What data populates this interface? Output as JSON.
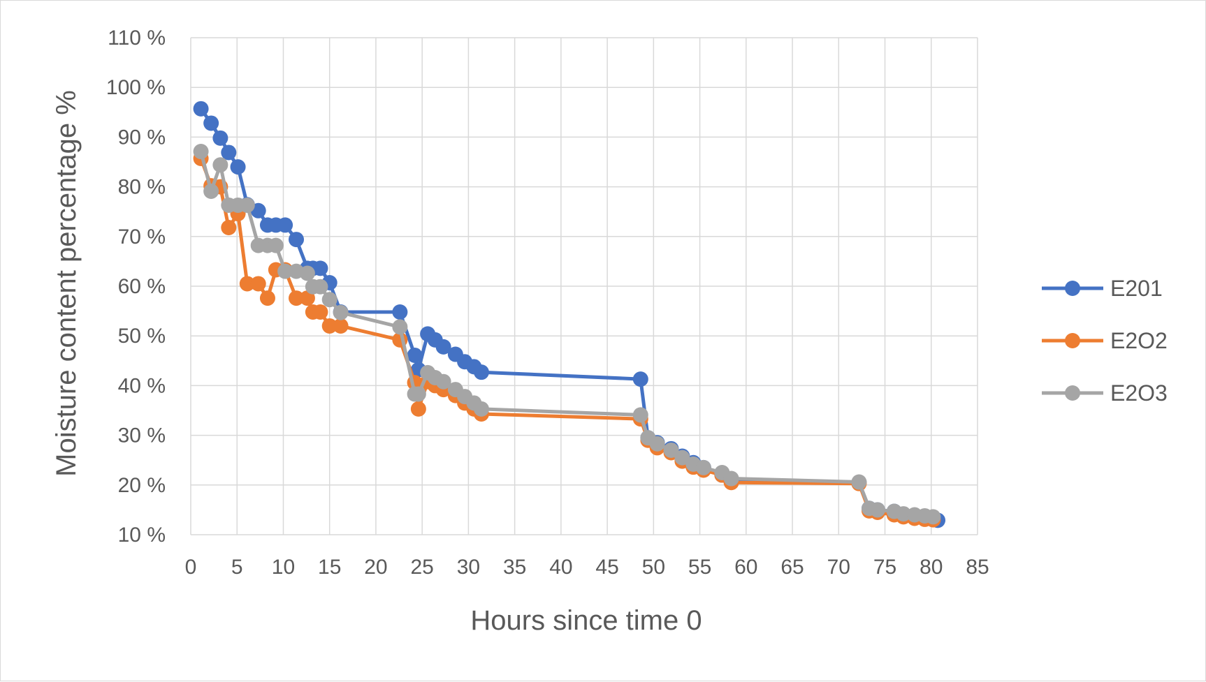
{
  "chart_data": {
    "type": "line",
    "title": "",
    "xlabel": "Hours since time 0",
    "ylabel": "Moisture content percentage %",
    "xlim": [
      0,
      85
    ],
    "ylim": [
      10,
      110
    ],
    "xticks": [
      "0",
      "5",
      "10",
      "15",
      "20",
      "25",
      "30",
      "35",
      "40",
      "45",
      "50",
      "55",
      "60",
      "65",
      "70",
      "75",
      "80",
      "85"
    ],
    "yticks": [
      "10 %",
      "20 %",
      "30 %",
      "40 %",
      "50 %",
      "60 %",
      "70 %",
      "80 %",
      "90 %",
      "100 %",
      "110 %"
    ],
    "grid": true,
    "legend_position": "right",
    "series": [
      {
        "name": "E201",
        "color": "#4472c4",
        "points": [
          [
            1.1,
            95.7
          ],
          [
            2.2,
            92.8
          ],
          [
            3.2,
            89.8
          ],
          [
            4.1,
            86.9
          ],
          [
            5.1,
            84.0
          ],
          [
            6.1,
            76.4
          ],
          [
            7.3,
            75.2
          ],
          [
            8.3,
            72.3
          ],
          [
            9.2,
            72.3
          ],
          [
            10.2,
            72.3
          ],
          [
            11.4,
            69.4
          ],
          [
            12.6,
            63.6
          ],
          [
            13.2,
            63.6
          ],
          [
            14.0,
            63.6
          ],
          [
            15.0,
            60.7
          ],
          [
            16.2,
            54.8
          ],
          [
            22.6,
            54.8
          ],
          [
            24.2,
            46.1
          ],
          [
            24.6,
            43.2
          ],
          [
            25.6,
            50.4
          ],
          [
            26.4,
            49.2
          ],
          [
            27.3,
            47.8
          ],
          [
            28.6,
            46.3
          ],
          [
            29.6,
            44.8
          ],
          [
            30.6,
            43.8
          ],
          [
            31.4,
            42.7
          ],
          [
            48.6,
            41.3
          ],
          [
            49.4,
            29.5
          ],
          [
            50.4,
            28.5
          ],
          [
            51.9,
            27.3
          ],
          [
            53.1,
            25.8
          ],
          [
            54.3,
            24.5
          ],
          [
            55.4,
            23.5
          ],
          [
            57.4,
            22.0
          ],
          [
            58.4,
            21.0
          ],
          [
            72.2,
            20.5
          ],
          [
            73.3,
            15.3
          ],
          [
            74.2,
            15.0
          ],
          [
            76.0,
            14.7
          ],
          [
            77.0,
            14.1
          ],
          [
            78.2,
            13.8
          ],
          [
            79.3,
            13.5
          ],
          [
            80.2,
            13.2
          ],
          [
            80.7,
            12.9
          ]
        ]
      },
      {
        "name": "E2O2",
        "color": "#ed7d31",
        "points": [
          [
            1.1,
            85.7
          ],
          [
            2.2,
            80.2
          ],
          [
            3.2,
            80.0
          ],
          [
            4.1,
            71.8
          ],
          [
            5.1,
            74.6
          ],
          [
            6.1,
            60.5
          ],
          [
            7.3,
            60.5
          ],
          [
            8.3,
            57.6
          ],
          [
            9.2,
            63.3
          ],
          [
            10.2,
            63.3
          ],
          [
            11.4,
            57.6
          ],
          [
            12.6,
            57.6
          ],
          [
            13.2,
            54.8
          ],
          [
            14.0,
            54.8
          ],
          [
            15.0,
            52.0
          ],
          [
            16.2,
            52.0
          ],
          [
            22.6,
            49.2
          ],
          [
            24.2,
            40.6
          ],
          [
            24.6,
            35.3
          ],
          [
            25.6,
            40.8
          ],
          [
            26.4,
            40.0
          ],
          [
            27.3,
            39.2
          ],
          [
            28.6,
            38.0
          ],
          [
            29.6,
            36.5
          ],
          [
            30.6,
            35.3
          ],
          [
            31.4,
            34.3
          ],
          [
            48.6,
            33.3
          ],
          [
            49.4,
            29.0
          ],
          [
            50.4,
            27.5
          ],
          [
            51.9,
            26.5
          ],
          [
            53.1,
            24.8
          ],
          [
            54.3,
            23.6
          ],
          [
            55.4,
            23.0
          ],
          [
            57.4,
            22.0
          ],
          [
            58.4,
            20.5
          ],
          [
            72.2,
            20.3
          ],
          [
            73.3,
            14.8
          ],
          [
            74.2,
            14.5
          ],
          [
            76.0,
            14.0
          ],
          [
            77.0,
            13.6
          ],
          [
            78.2,
            13.3
          ],
          [
            79.3,
            13.1
          ],
          [
            80.2,
            13.0
          ]
        ]
      },
      {
        "name": "E2O3",
        "color": "#a5a5a5",
        "points": [
          [
            1.1,
            87.1
          ],
          [
            2.2,
            79.1
          ],
          [
            3.2,
            84.4
          ],
          [
            4.1,
            76.3
          ],
          [
            5.1,
            76.3
          ],
          [
            6.1,
            76.3
          ],
          [
            7.3,
            68.2
          ],
          [
            8.3,
            68.2
          ],
          [
            9.2,
            68.2
          ],
          [
            10.2,
            63.0
          ],
          [
            11.4,
            63.0
          ],
          [
            12.6,
            62.6
          ],
          [
            13.2,
            59.9
          ],
          [
            14.0,
            59.9
          ],
          [
            15.0,
            57.3
          ],
          [
            16.2,
            54.7
          ],
          [
            22.6,
            51.8
          ],
          [
            24.2,
            38.3
          ],
          [
            24.6,
            38.3
          ],
          [
            25.6,
            42.6
          ],
          [
            26.4,
            41.6
          ],
          [
            27.3,
            40.8
          ],
          [
            28.6,
            39.2
          ],
          [
            29.6,
            37.8
          ],
          [
            30.6,
            36.5
          ],
          [
            31.4,
            35.3
          ],
          [
            48.6,
            34.1
          ],
          [
            49.4,
            29.5
          ],
          [
            50.4,
            28.3
          ],
          [
            51.9,
            27.0
          ],
          [
            53.1,
            25.5
          ],
          [
            54.3,
            24.2
          ],
          [
            55.4,
            23.5
          ],
          [
            57.4,
            22.5
          ],
          [
            58.4,
            21.3
          ],
          [
            72.2,
            20.6
          ],
          [
            73.3,
            15.3
          ],
          [
            74.2,
            15.0
          ],
          [
            76.0,
            14.7
          ],
          [
            77.0,
            14.2
          ],
          [
            78.2,
            14.0
          ],
          [
            79.3,
            13.8
          ],
          [
            80.2,
            13.6
          ]
        ]
      }
    ]
  }
}
